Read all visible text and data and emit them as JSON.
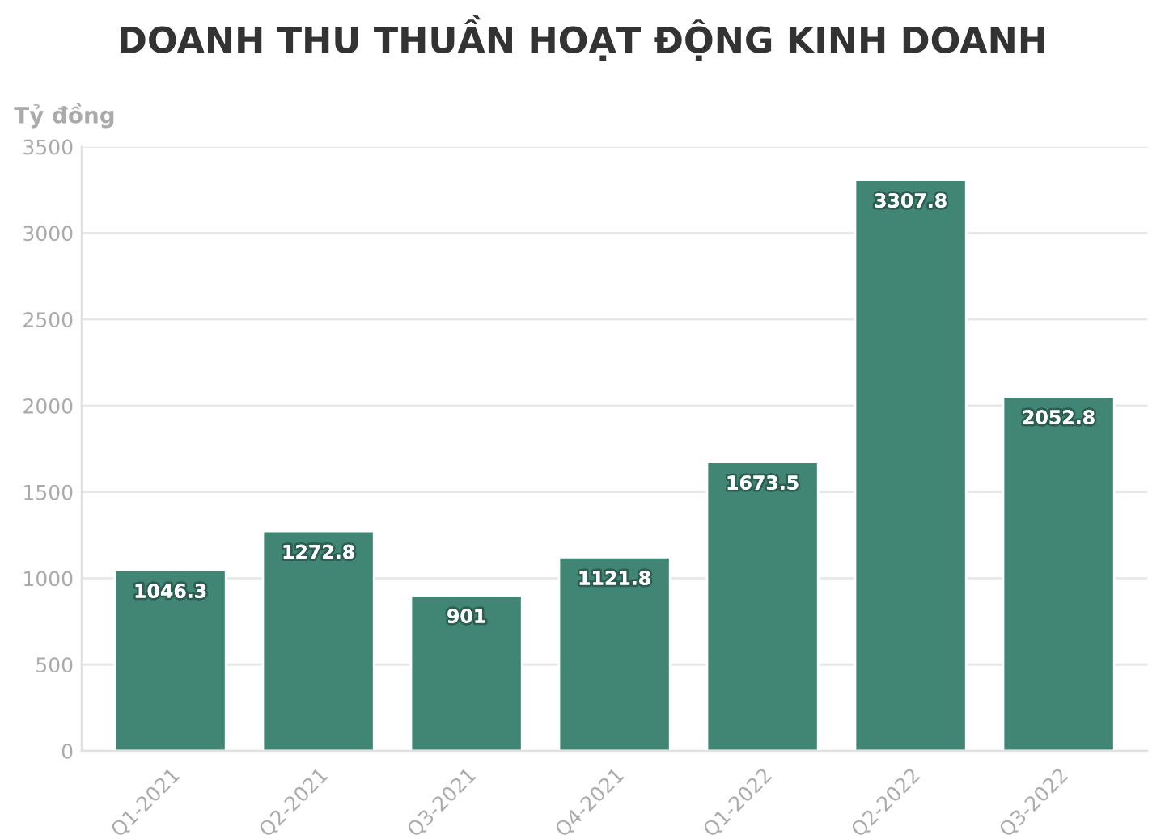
{
  "chart_data": {
    "type": "bar",
    "title": "DOANH THU THUẦN HOẠT ĐỘNG KINH DOANH",
    "ylabel": "Tỷ đồng",
    "categories": [
      "Q1-2021",
      "Q2-2021",
      "Q3-2021",
      "Q4-2021",
      "Q1-2022",
      "Q2-2022",
      "Q3-2022"
    ],
    "values": [
      1046.3,
      1272.8,
      901,
      1121.8,
      1673.5,
      3307.8,
      2052.8
    ],
    "color": "#418574",
    "ylim": [
      0,
      3500
    ],
    "yticks": [
      0,
      500,
      1000,
      1500,
      2000,
      2500,
      3000,
      3500
    ],
    "grid": "y",
    "data_labels": true
  }
}
